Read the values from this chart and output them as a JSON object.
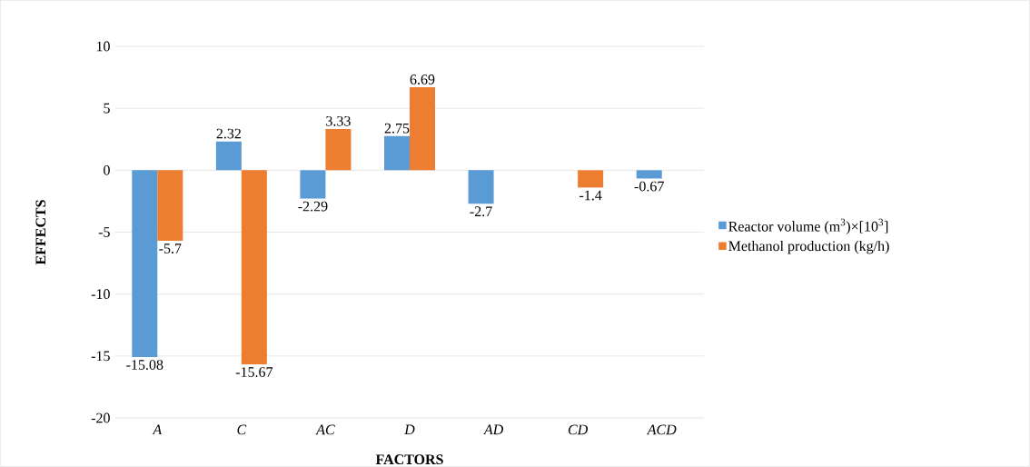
{
  "chart_data": {
    "type": "bar",
    "xlabel": "FACTORS",
    "ylabel": "EFFECTS",
    "categories": [
      "A",
      "C",
      "AC",
      "D",
      "AD",
      "CD",
      "ACD"
    ],
    "series": [
      {
        "name": "Reactor volume (m$^{3}$)×[10$^{3}$]",
        "color": "#5b9bd5",
        "values": [
          -15.08,
          2.32,
          -2.29,
          2.75,
          -2.7,
          null,
          -0.67
        ]
      },
      {
        "name": "Methanol production (kg/h)",
        "color": "#ed7d31",
        "values": [
          -5.7,
          -15.67,
          3.33,
          6.69,
          null,
          -1.4,
          null
        ]
      }
    ],
    "ylim": [
      -20,
      10
    ],
    "yticks": [
      -20,
      -15,
      -10,
      -5,
      0,
      5,
      10
    ],
    "grid": "y",
    "legend": "right",
    "data_labels": true
  }
}
